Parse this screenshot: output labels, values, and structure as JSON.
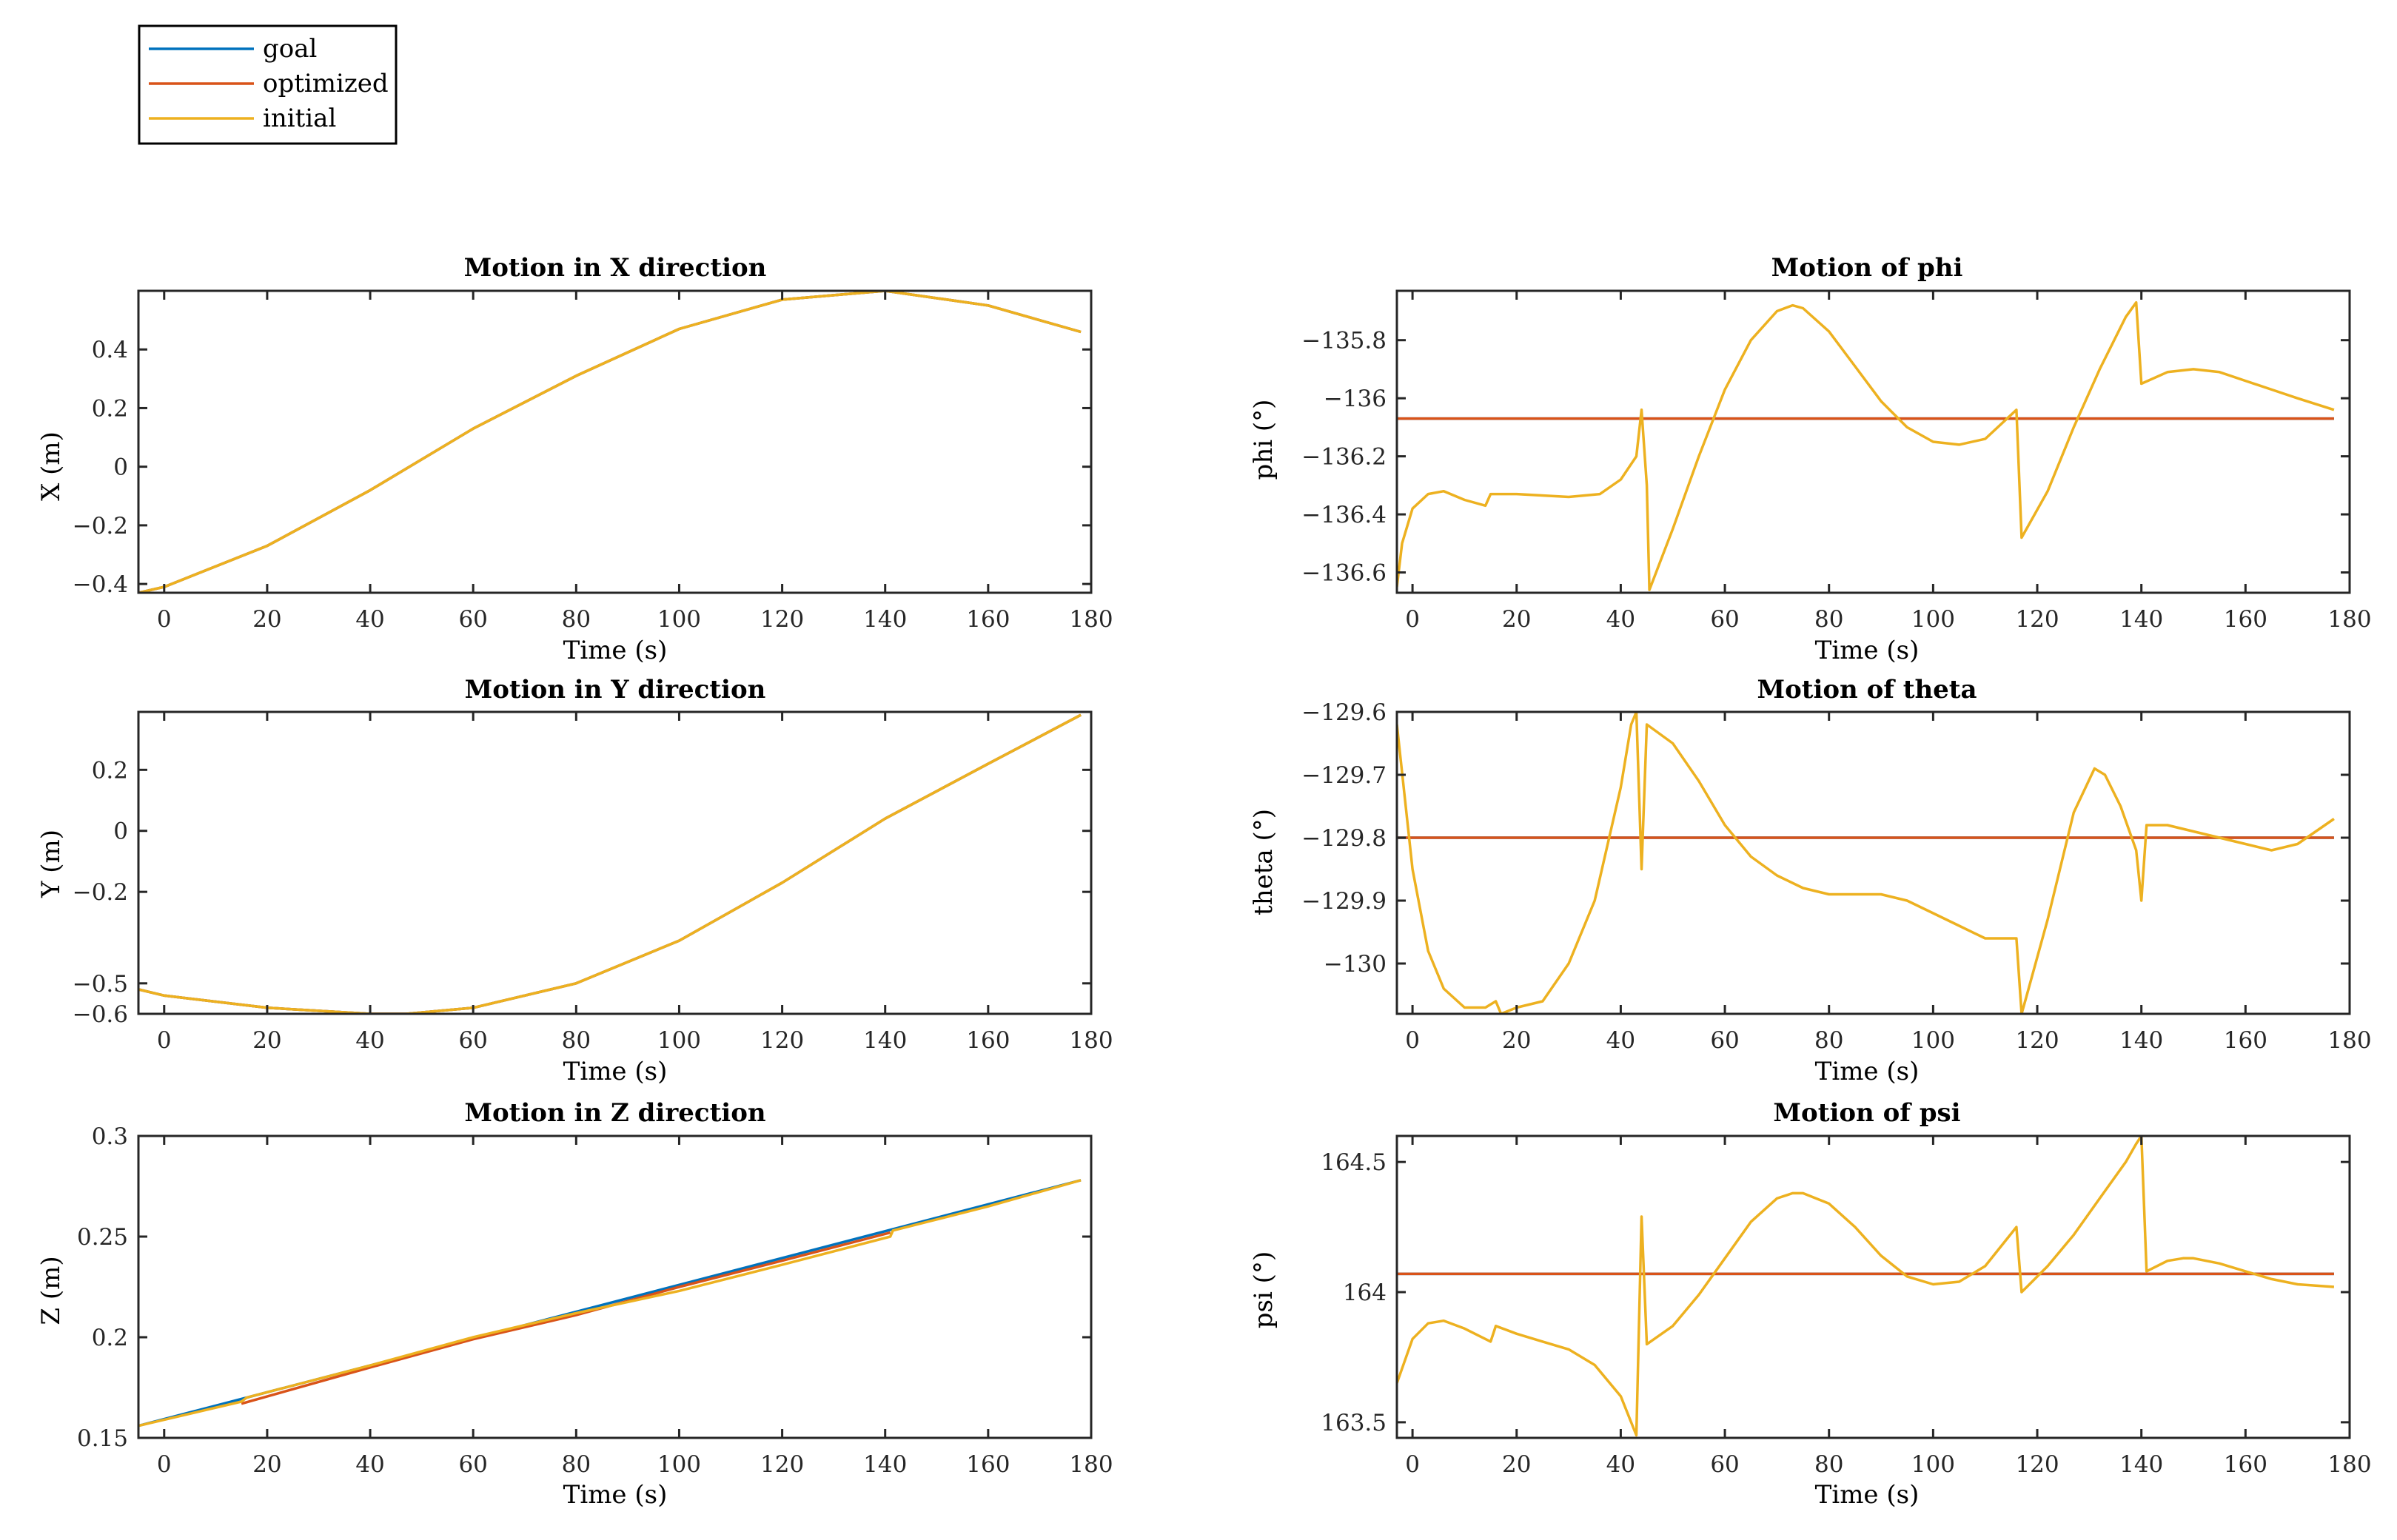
{
  "legend": {
    "entries": [
      {
        "name": "goal",
        "color": "#0072BD"
      },
      {
        "name": "optimized",
        "color": "#D95319"
      },
      {
        "name": "initial",
        "color": "#EDB120"
      }
    ],
    "placement": "top-left"
  },
  "chart_data": [
    {
      "type": "line",
      "title": "Motion in X direction",
      "xlabel": "Time (s)",
      "ylabel": "X (m)",
      "xlim": [
        -5,
        180
      ],
      "ylim": [
        -0.43,
        0.6
      ],
      "xticks": [
        0,
        20,
        40,
        60,
        80,
        100,
        120,
        140,
        160,
        180
      ],
      "yticks": [
        -0.4,
        -0.2,
        0,
        0.2,
        0.4
      ],
      "ytick_labels": [
        "−0.4",
        "−0.2",
        "0",
        "0.2",
        "0.4"
      ],
      "series": [
        {
          "name": "goal",
          "x": [
            -5,
            0,
            20,
            40,
            60,
            80,
            100,
            120,
            140,
            160,
            178
          ],
          "y": [
            -0.43,
            -0.41,
            -0.27,
            -0.08,
            0.13,
            0.31,
            0.47,
            0.57,
            0.6,
            0.55,
            0.46
          ]
        },
        {
          "name": "optimized",
          "x": [
            -5,
            0,
            20,
            40,
            60,
            80,
            100,
            120,
            140,
            160,
            178
          ],
          "y": [
            -0.43,
            -0.41,
            -0.27,
            -0.08,
            0.13,
            0.31,
            0.47,
            0.57,
            0.6,
            0.55,
            0.46
          ]
        },
        {
          "name": "initial",
          "x": [
            -5,
            0,
            20,
            40,
            60,
            80,
            100,
            120,
            140,
            160,
            178
          ],
          "y": [
            -0.43,
            -0.41,
            -0.27,
            -0.08,
            0.13,
            0.31,
            0.47,
            0.57,
            0.6,
            0.55,
            0.46
          ]
        }
      ]
    },
    {
      "type": "line",
      "title": "Motion of phi",
      "xlabel": "Time (s)",
      "ylabel": "phi (°)",
      "xlim": [
        -3,
        180
      ],
      "ylim": [
        -136.67,
        -135.63
      ],
      "xticks": [
        0,
        20,
        40,
        60,
        80,
        100,
        120,
        140,
        160,
        180
      ],
      "yticks": [
        -136.6,
        -136.4,
        -136.2,
        -136,
        -135.8
      ],
      "ytick_labels": [
        "−136.6",
        "−136.4",
        "−136.2",
        "−136",
        "−135.8"
      ],
      "series": [
        {
          "name": "goal",
          "x": [
            -3,
            177
          ],
          "y": [
            -136.07,
            -136.07
          ]
        },
        {
          "name": "optimized",
          "x": [
            -3,
            177
          ],
          "y": [
            -136.07,
            -136.07
          ]
        },
        {
          "name": "initial",
          "x": [
            -3,
            -2,
            0,
            3,
            6,
            10,
            14,
            15,
            16,
            20,
            30,
            36,
            40,
            43,
            44,
            45,
            45.5,
            50,
            55,
            60,
            65,
            70,
            73,
            75,
            80,
            85,
            90,
            95,
            100,
            105,
            110,
            116,
            117,
            122,
            127,
            132,
            137,
            139,
            140,
            145,
            150,
            155,
            160,
            165,
            170,
            177
          ],
          "y": [
            -136.65,
            -136.5,
            -136.38,
            -136.33,
            -136.32,
            -136.35,
            -136.37,
            -136.33,
            -136.33,
            -136.33,
            -136.34,
            -136.33,
            -136.28,
            -136.2,
            -136.04,
            -136.3,
            -136.66,
            -136.45,
            -136.2,
            -135.97,
            -135.8,
            -135.7,
            -135.68,
            -135.69,
            -135.77,
            -135.89,
            -136.01,
            -136.1,
            -136.15,
            -136.16,
            -136.14,
            -136.04,
            -136.48,
            -136.32,
            -136.1,
            -135.9,
            -135.72,
            -135.67,
            -135.95,
            -135.91,
            -135.9,
            -135.91,
            -135.94,
            -135.97,
            -136.0,
            -136.04
          ]
        }
      ]
    },
    {
      "type": "line",
      "title": "Motion in Y direction",
      "xlabel": "Time (s)",
      "ylabel": "Y (m)",
      "xlim": [
        -5,
        180
      ],
      "ylim": [
        -0.6,
        0.39
      ],
      "xticks": [
        0,
        20,
        40,
        60,
        80,
        100,
        120,
        140,
        160,
        180
      ],
      "yticks": [
        -0.6,
        -0.5,
        -0.2,
        0,
        0.2
      ],
      "ytick_labels": [
        "−0.6",
        "−0.5",
        "−0.2",
        "0",
        "0.2"
      ],
      "series": [
        {
          "name": "goal",
          "x": [
            -5,
            0,
            20,
            40,
            47,
            60,
            80,
            100,
            120,
            140,
            160,
            178
          ],
          "y": [
            -0.52,
            -0.54,
            -0.58,
            -0.6,
            -0.6,
            -0.58,
            -0.5,
            -0.36,
            -0.17,
            0.04,
            0.22,
            0.38
          ]
        },
        {
          "name": "optimized",
          "x": [
            -5,
            0,
            20,
            40,
            47,
            60,
            80,
            100,
            120,
            140,
            160,
            178
          ],
          "y": [
            -0.52,
            -0.54,
            -0.58,
            -0.6,
            -0.6,
            -0.58,
            -0.5,
            -0.36,
            -0.17,
            0.04,
            0.22,
            0.38
          ]
        },
        {
          "name": "initial",
          "x": [
            -5,
            0,
            20,
            40,
            47,
            60,
            80,
            100,
            120,
            140,
            160,
            178
          ],
          "y": [
            -0.52,
            -0.54,
            -0.58,
            -0.6,
            -0.6,
            -0.58,
            -0.5,
            -0.36,
            -0.17,
            0.04,
            0.22,
            0.38
          ]
        }
      ]
    },
    {
      "type": "line",
      "title": "Motion of theta",
      "xlabel": "Time (s)",
      "ylabel": "theta (°)",
      "xlim": [
        -3,
        180
      ],
      "ylim": [
        -130.08,
        -129.6
      ],
      "xticks": [
        0,
        20,
        40,
        60,
        80,
        100,
        120,
        140,
        160,
        180
      ],
      "yticks": [
        -130,
        -129.9,
        -129.8,
        -129.7,
        -129.6
      ],
      "ytick_labels": [
        "−130",
        "−129.9",
        "−129.8",
        "−129.7",
        "−129.6"
      ],
      "series": [
        {
          "name": "goal",
          "x": [
            -3,
            177
          ],
          "y": [
            -129.8,
            -129.8
          ]
        },
        {
          "name": "optimized",
          "x": [
            -3,
            177
          ],
          "y": [
            -129.8,
            -129.8
          ]
        },
        {
          "name": "initial",
          "x": [
            -3,
            0,
            3,
            6,
            10,
            14,
            16,
            17,
            20,
            25,
            30,
            35,
            40,
            42,
            43,
            44,
            45,
            50,
            55,
            60,
            65,
            70,
            75,
            80,
            85,
            90,
            95,
            100,
            105,
            110,
            116,
            117,
            118,
            122,
            127,
            131,
            133,
            136,
            139,
            140,
            141,
            145,
            150,
            155,
            160,
            165,
            170,
            177
          ],
          "y": [
            -129.62,
            -129.85,
            -129.98,
            -130.04,
            -130.07,
            -130.07,
            -130.06,
            -130.08,
            -130.07,
            -130.06,
            -130.0,
            -129.9,
            -129.72,
            -129.62,
            -129.6,
            -129.85,
            -129.62,
            -129.65,
            -129.71,
            -129.78,
            -129.83,
            -129.86,
            -129.88,
            -129.89,
            -129.89,
            -129.89,
            -129.9,
            -129.92,
            -129.94,
            -129.96,
            -129.96,
            -130.08,
            -130.05,
            -129.93,
            -129.76,
            -129.69,
            -129.7,
            -129.75,
            -129.82,
            -129.9,
            -129.78,
            -129.78,
            -129.79,
            -129.8,
            -129.81,
            -129.82,
            -129.81,
            -129.77
          ]
        }
      ]
    },
    {
      "type": "line",
      "title": "Motion in Z direction",
      "xlabel": "Time (s)",
      "ylabel": "Z (m)",
      "xlim": [
        -5,
        180
      ],
      "ylim": [
        0.15,
        0.3
      ],
      "xticks": [
        0,
        20,
        40,
        60,
        80,
        100,
        120,
        140,
        160,
        180
      ],
      "yticks": [
        0.15,
        0.2,
        0.25,
        0.3
      ],
      "ytick_labels": [
        "0.15",
        "0.2",
        "0.25",
        "0.3"
      ],
      "series": [
        {
          "name": "goal",
          "x": [
            -5,
            178
          ],
          "y": [
            0.156,
            0.278
          ]
        },
        {
          "name": "optimized",
          "x": [
            15,
            40,
            60,
            80,
            100,
            120,
            141
          ],
          "y": [
            0.167,
            0.185,
            0.199,
            0.211,
            0.225,
            0.238,
            0.252
          ]
        },
        {
          "name": "initial",
          "x": [
            -5,
            15,
            16,
            40,
            60,
            80,
            100,
            120,
            141,
            141.5,
            160,
            178
          ],
          "y": [
            0.156,
            0.168,
            0.17,
            0.186,
            0.2,
            0.212,
            0.223,
            0.236,
            0.25,
            0.253,
            0.265,
            0.278
          ]
        }
      ]
    },
    {
      "type": "line",
      "title": "Motion of psi",
      "xlabel": "Time (s)",
      "ylabel": "psi (°)",
      "xlim": [
        -3,
        180
      ],
      "ylim": [
        163.44,
        164.6
      ],
      "xticks": [
        0,
        20,
        40,
        60,
        80,
        100,
        120,
        140,
        160,
        180
      ],
      "yticks": [
        163.5,
        164,
        164.5
      ],
      "ytick_labels": [
        "163.5",
        "164",
        "164.5"
      ],
      "series": [
        {
          "name": "goal",
          "x": [
            -3,
            177
          ],
          "y": [
            164.07,
            164.07
          ]
        },
        {
          "name": "optimized",
          "x": [
            -3,
            177
          ],
          "y": [
            164.07,
            164.07
          ]
        },
        {
          "name": "initial",
          "x": [
            -3,
            0,
            3,
            6,
            10,
            15,
            16,
            20,
            25,
            30,
            35,
            40,
            43,
            44,
            45,
            50,
            55,
            60,
            65,
            70,
            73,
            75,
            80,
            85,
            90,
            95,
            100,
            105,
            110,
            116,
            117,
            118,
            122,
            127,
            132,
            137,
            139,
            140,
            141,
            145,
            148,
            150,
            155,
            160,
            165,
            170,
            177
          ],
          "y": [
            163.65,
            163.82,
            163.88,
            163.89,
            163.86,
            163.81,
            163.87,
            163.84,
            163.81,
            163.78,
            163.72,
            163.6,
            163.45,
            164.29,
            163.8,
            163.87,
            163.99,
            164.13,
            164.27,
            164.36,
            164.38,
            164.38,
            164.34,
            164.25,
            164.14,
            164.06,
            164.03,
            164.04,
            164.1,
            164.25,
            164.0,
            164.02,
            164.1,
            164.22,
            164.36,
            164.5,
            164.57,
            164.6,
            164.08,
            164.12,
            164.13,
            164.13,
            164.11,
            164.08,
            164.05,
            164.03,
            164.02
          ]
        }
      ]
    }
  ]
}
